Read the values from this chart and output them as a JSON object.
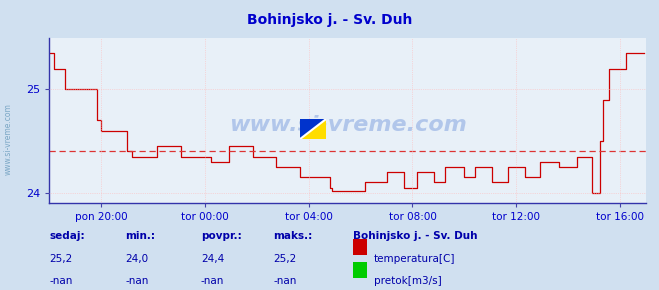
{
  "title": "Bohinjsko j. - Sv. Duh",
  "bg_color": "#d0e0f0",
  "plot_bg_color": "#e8f0f8",
  "line_color": "#cc0000",
  "avg_value": 24.4,
  "ylim": [
    23.9,
    25.5
  ],
  "yticks": [
    24,
    25
  ],
  "ylabel_color": "#0000cc",
  "xlabel_color": "#0000cc",
  "title_color": "#0000cc",
  "dashed_color": "#dd3333",
  "x_labels": [
    "pon 20:00",
    "tor 00:00",
    "tor 04:00",
    "tor 08:00",
    "tor 12:00",
    "tor 16:00"
  ],
  "watermark": "www.si-vreme.com",
  "footer_labels": [
    "sedaj:",
    "min.:",
    "povpr.:",
    "maks.:"
  ],
  "footer_values_temp": [
    "25,2",
    "24,0",
    "24,4",
    "25,2"
  ],
  "footer_values_pretok": [
    "-nan",
    "-nan",
    "-nan",
    "-nan"
  ],
  "legend_title": "Bohinjsko j. - Sv. Duh",
  "temp_color": "#cc0000",
  "pretok_color": "#00cc00",
  "footer_color": "#0000aa"
}
